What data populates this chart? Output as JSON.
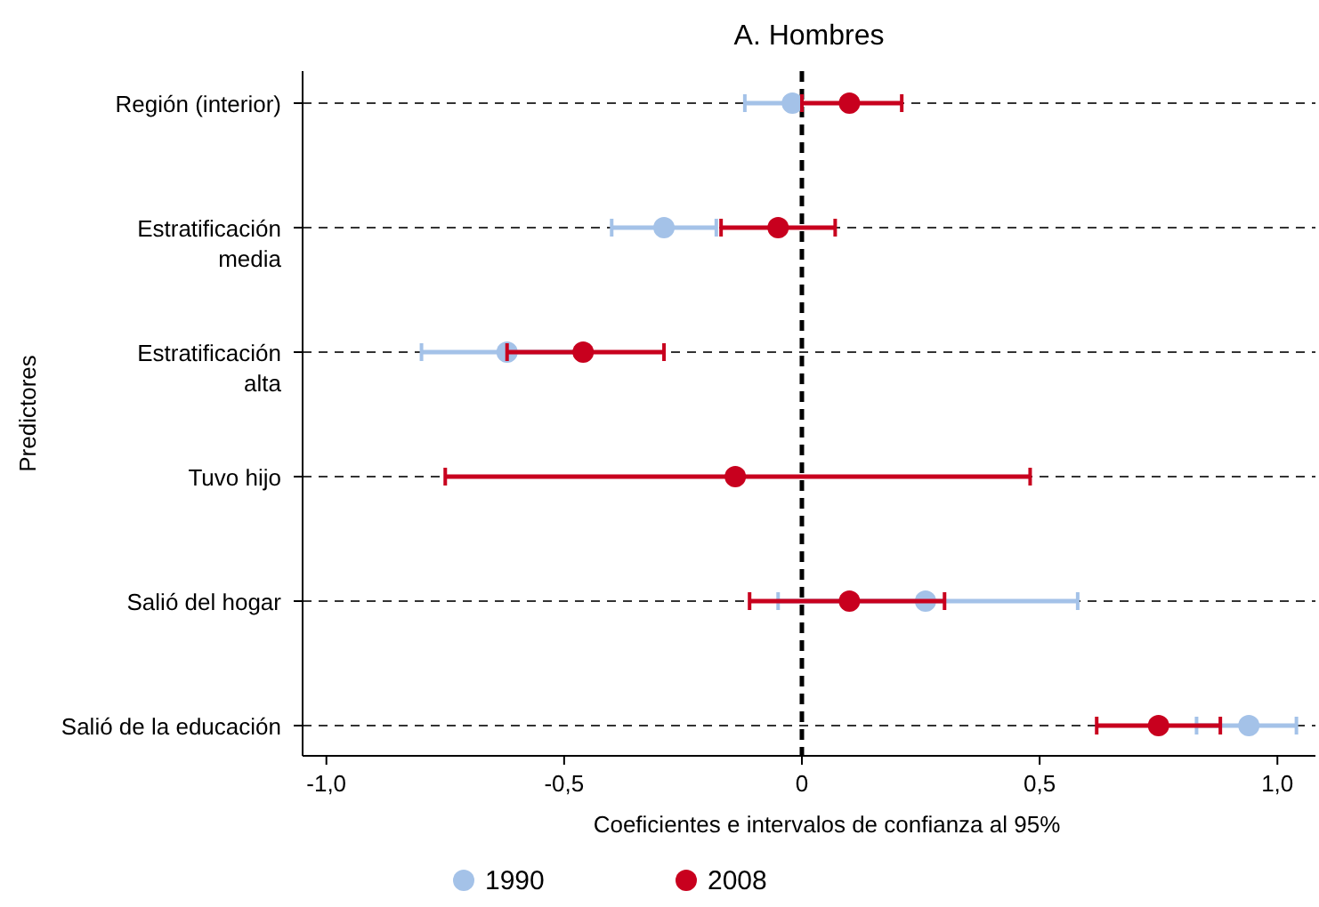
{
  "chart_data": {
    "type": "scatter",
    "orientation": "horizontal",
    "title": "A. Hombres",
    "xlabel": "Coeficientes e intervalos de confianza al 95%",
    "ylabel": "Predictores",
    "categories": [
      "Región (interior)",
      "Estratificación\nmedia",
      "Estratificación\nalta",
      "Tuvo hijo",
      "Salió del hogar",
      "Salió de la educación"
    ],
    "series": [
      {
        "name": "1990",
        "color": "#a4c2e8",
        "values": [
          -0.02,
          -0.29,
          -0.62,
          null,
          0.26,
          0.94
        ],
        "errors": [
          [
            -0.12,
            0.0
          ],
          [
            -0.4,
            -0.18
          ],
          [
            -0.8,
            -0.45
          ],
          null,
          [
            -0.05,
            0.58
          ],
          [
            0.83,
            1.04
          ]
        ]
      },
      {
        "name": "2008",
        "color": "#c8001e",
        "values": [
          0.1,
          -0.05,
          -0.46,
          -0.14,
          0.1,
          0.75
        ],
        "errors": [
          [
            0.0,
            0.21
          ],
          [
            -0.17,
            0.07
          ],
          [
            -0.62,
            -0.29
          ],
          [
            -0.75,
            0.48
          ],
          [
            -0.11,
            0.3
          ],
          [
            0.62,
            0.88
          ]
        ]
      }
    ],
    "xlim": [
      -1.05,
      1.08
    ],
    "xticks": [
      {
        "value": -1,
        "label": "-1,0"
      },
      {
        "value": -0.5,
        "label": "-0,5"
      },
      {
        "value": 0,
        "label": "0"
      },
      {
        "value": 0.5,
        "label": "0,5"
      },
      {
        "value": 1,
        "label": "1,0"
      }
    ],
    "ref_lines": [
      {
        "axis": "x",
        "value": 0,
        "line_style": "dashed",
        "color": "#000000"
      }
    ],
    "grid": "y",
    "legend": "bottom",
    "marker": "circle"
  }
}
